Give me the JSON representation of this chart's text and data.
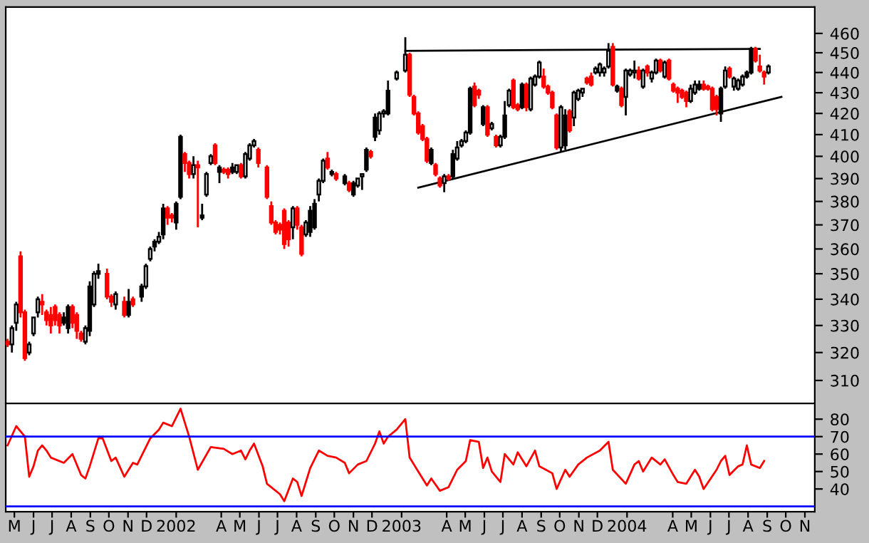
{
  "chart_data": [
    {
      "type": "candlestick",
      "log": true,
      "tick_labels": "y",
      "xlim": [
        "2001-05-01",
        "2004-12-01"
      ],
      "ylim": [
        302,
        474
      ],
      "yticks": [
        310,
        320,
        330,
        340,
        350,
        360,
        370,
        380,
        390,
        400,
        410,
        420,
        430,
        440,
        450,
        460
      ],
      "x": [
        "2001-05-04",
        "2001-05-11",
        "2001-05-18",
        "2001-05-25",
        "2001-06-01",
        "2001-06-08",
        "2001-06-15",
        "2001-06-22",
        "2001-06-29",
        "2001-07-06",
        "2001-07-13",
        "2001-07-20",
        "2001-07-27",
        "2001-08-03",
        "2001-08-10",
        "2001-08-17",
        "2001-08-24",
        "2001-08-31",
        "2001-09-07",
        "2001-09-14",
        "2001-09-21",
        "2001-09-28",
        "2001-10-12",
        "2001-10-19",
        "2001-10-26",
        "2001-11-09",
        "2001-11-16",
        "2001-11-23",
        "2001-12-07",
        "2001-12-14",
        "2001-12-21",
        "2001-12-28",
        "2002-01-04",
        "2002-01-11",
        "2002-01-18",
        "2002-01-25",
        "2002-02-01",
        "2002-02-08",
        "2002-02-15",
        "2002-02-22",
        "2002-03-01",
        "2002-03-08",
        "2002-03-15",
        "2002-03-22",
        "2002-03-29",
        "2002-04-05",
        "2002-04-12",
        "2002-04-19",
        "2002-04-26",
        "2002-05-03",
        "2002-05-10",
        "2002-05-17",
        "2002-05-24",
        "2002-05-31",
        "2002-06-07",
        "2002-06-14",
        "2002-06-28",
        "2002-07-05",
        "2002-07-12",
        "2002-07-19",
        "2002-07-26",
        "2002-08-02",
        "2002-08-09",
        "2002-08-16",
        "2002-08-23",
        "2002-08-30",
        "2002-09-06",
        "2002-09-13",
        "2002-09-20",
        "2002-09-27",
        "2002-10-04",
        "2002-10-11",
        "2002-10-18",
        "2002-11-01",
        "2002-11-08",
        "2002-11-15",
        "2002-11-22",
        "2002-11-29",
        "2002-12-06",
        "2002-12-13",
        "2002-12-20",
        "2002-12-27",
        "2003-01-03",
        "2003-01-10",
        "2003-01-24",
        "2003-02-07",
        "2003-02-14",
        "2003-02-21",
        "2003-02-28",
        "2003-03-07",
        "2003-03-14",
        "2003-03-21",
        "2003-03-28",
        "2003-04-04",
        "2003-04-11",
        "2003-04-18",
        "2003-04-25",
        "2003-05-02",
        "2003-05-09",
        "2003-05-16",
        "2003-05-23",
        "2003-05-30",
        "2003-06-06",
        "2003-06-13",
        "2003-06-20",
        "2003-06-27",
        "2003-07-04",
        "2003-07-11",
        "2003-07-18",
        "2003-07-25",
        "2003-08-01",
        "2003-08-08",
        "2003-08-15",
        "2003-08-22",
        "2003-08-29",
        "2003-09-05",
        "2003-09-12",
        "2003-09-19",
        "2003-09-26",
        "2003-10-03",
        "2003-10-10",
        "2003-10-17",
        "2003-10-24",
        "2003-10-31",
        "2003-11-07",
        "2003-11-14",
        "2003-11-21",
        "2003-11-28",
        "2003-12-05",
        "2003-12-12",
        "2003-12-19",
        "2003-12-26",
        "2004-01-02",
        "2004-01-09",
        "2004-01-16",
        "2004-01-23",
        "2004-01-30",
        "2004-02-06",
        "2004-02-13",
        "2004-02-20",
        "2004-02-27",
        "2004-03-05",
        "2004-03-12",
        "2004-03-19",
        "2004-03-26",
        "2004-04-02",
        "2004-04-09",
        "2004-04-16",
        "2004-04-23",
        "2004-04-30",
        "2004-05-07",
        "2004-05-14",
        "2004-05-21",
        "2004-05-28",
        "2004-06-04",
        "2004-06-11",
        "2004-06-18",
        "2004-06-25",
        "2004-07-02",
        "2004-07-09",
        "2004-07-16",
        "2004-07-23",
        "2004-07-30",
        "2004-08-06",
        "2004-08-13",
        "2004-08-20",
        "2004-08-27",
        "2004-09-03",
        "2004-09-10",
        "2004-09-17"
      ],
      "ohlc": [
        [
          324,
          325,
          322,
          323
        ],
        [
          323,
          330,
          320,
          329
        ],
        [
          331,
          339,
          328,
          338
        ],
        [
          357,
          359,
          333,
          335
        ],
        [
          335,
          336,
          317,
          318
        ],
        [
          320,
          324,
          319,
          323
        ],
        [
          327,
          333,
          326,
          333
        ],
        [
          335,
          341,
          333,
          340
        ],
        [
          339,
          342,
          334,
          338
        ],
        [
          335,
          336,
          330,
          332
        ],
        [
          334,
          337,
          327,
          330
        ],
        [
          337,
          338,
          330,
          332
        ],
        [
          334,
          335,
          327,
          330
        ],
        [
          333,
          335,
          330,
          331
        ],
        [
          337,
          338,
          327,
          329
        ],
        [
          337,
          338,
          329,
          331
        ],
        [
          334,
          335,
          325,
          328
        ],
        [
          327,
          328,
          324,
          325
        ],
        [
          324,
          330,
          323,
          329
        ],
        [
          345,
          347,
          326,
          328
        ],
        [
          338,
          351,
          337,
          350
        ],
        [
          351,
          354,
          348,
          350
        ],
        [
          350,
          352,
          340,
          341
        ],
        [
          341,
          342,
          337,
          339
        ],
        [
          338,
          343,
          336,
          342
        ],
        [
          339,
          341,
          333,
          334
        ],
        [
          339,
          344,
          333,
          334
        ],
        [
          340,
          341,
          337,
          338
        ],
        [
          345,
          346,
          339,
          341
        ],
        [
          345,
          354,
          344,
          353
        ],
        [
          356,
          361,
          355,
          360
        ],
        [
          363,
          364,
          359,
          361
        ],
        [
          363,
          367,
          362,
          365
        ],
        [
          377,
          379,
          364,
          366
        ],
        [
          377,
          378,
          370,
          373
        ],
        [
          374,
          375,
          371,
          373
        ],
        [
          379,
          380,
          368,
          371
        ],
        [
          409,
          410,
          381,
          382
        ],
        [
          401,
          402,
          393,
          397
        ],
        [
          397,
          398,
          390,
          392
        ],
        [
          392,
          400,
          390,
          396
        ],
        [
          396,
          398,
          369,
          395
        ],
        [
          374,
          379,
          372,
          373
        ],
        [
          383,
          393,
          382,
          392
        ],
        [
          397,
          401,
          396,
          400
        ],
        [
          405,
          406,
          396,
          397
        ],
        [
          395,
          396,
          388,
          393
        ],
        [
          394,
          395,
          392,
          393
        ],
        [
          394,
          395,
          390,
          392
        ],
        [
          395,
          397,
          392,
          393
        ],
        [
          393,
          396,
          392,
          396
        ],
        [
          396,
          397,
          390,
          391
        ],
        [
          391,
          402,
          390,
          401
        ],
        [
          399,
          406,
          398,
          405
        ],
        [
          405,
          408,
          404,
          407
        ],
        [
          403,
          404,
          395,
          397
        ],
        [
          395,
          396,
          381,
          382
        ],
        [
          378,
          380,
          370,
          371
        ],
        [
          371,
          372,
          366,
          367
        ],
        [
          370,
          371,
          366,
          368
        ],
        [
          376,
          377,
          360,
          362
        ],
        [
          371,
          372,
          361,
          364
        ],
        [
          369,
          378,
          364,
          377
        ],
        [
          377,
          378,
          368,
          370
        ],
        [
          369,
          370,
          357,
          358
        ],
        [
          366,
          372,
          365,
          371
        ],
        [
          376,
          378,
          365,
          367
        ],
        [
          379,
          381,
          368,
          369
        ],
        [
          383,
          390,
          380,
          389
        ],
        [
          389,
          399,
          388,
          398
        ],
        [
          399,
          402,
          394,
          395
        ],
        [
          393,
          394,
          391,
          392
        ],
        [
          392,
          393,
          389,
          390
        ],
        [
          391,
          392,
          387,
          388
        ],
        [
          388,
          389,
          384,
          385
        ],
        [
          388,
          389,
          382,
          383
        ],
        [
          387,
          390,
          386,
          390
        ],
        [
          391,
          392,
          385,
          392
        ],
        [
          403,
          404,
          393,
          394
        ],
        [
          402,
          403,
          399,
          400
        ],
        [
          418,
          420,
          407,
          409
        ],
        [
          412,
          421,
          410,
          420
        ],
        [
          420,
          422,
          418,
          421
        ],
        [
          431,
          436,
          419,
          420
        ],
        [
          437,
          441,
          436,
          440
        ],
        [
          441,
          458,
          440,
          449
        ],
        [
          449,
          450,
          428,
          429
        ],
        [
          428,
          429,
          419,
          420
        ],
        [
          420,
          421,
          410,
          411
        ],
        [
          414,
          415,
          407,
          408
        ],
        [
          408,
          409,
          397,
          398
        ],
        [
          403,
          404,
          396,
          397
        ],
        [
          396,
          397,
          391,
          392
        ],
        [
          390,
          391,
          386,
          387
        ],
        [
          388,
          392,
          384,
          391
        ],
        [
          391,
          392,
          389,
          390
        ],
        [
          401,
          403,
          390,
          391
        ],
        [
          399,
          407,
          398,
          404
        ],
        [
          405,
          408,
          404,
          407
        ],
        [
          407,
          412,
          406,
          411
        ],
        [
          432,
          433,
          410,
          411
        ],
        [
          433,
          435,
          423,
          424
        ],
        [
          431,
          432,
          427,
          429
        ],
        [
          423,
          424,
          414,
          415
        ],
        [
          423,
          424,
          409,
          410
        ],
        [
          413,
          416,
          412,
          415
        ],
        [
          409,
          410,
          404,
          405
        ],
        [
          405,
          410,
          404,
          409
        ],
        [
          419,
          426,
          408,
          409
        ],
        [
          424,
          432,
          423,
          431
        ],
        [
          436,
          437,
          422,
          423
        ],
        [
          424,
          425,
          421,
          422
        ],
        [
          434,
          435,
          422,
          423
        ],
        [
          434,
          435,
          421,
          423
        ],
        [
          422,
          438,
          421,
          437
        ],
        [
          434,
          439,
          433,
          438
        ],
        [
          438,
          446,
          437,
          445
        ],
        [
          438,
          442,
          432,
          433
        ],
        [
          433,
          434,
          429,
          430
        ],
        [
          430,
          431,
          422,
          423
        ],
        [
          419,
          420,
          403,
          404
        ],
        [
          404,
          424,
          402,
          423
        ],
        [
          419,
          422,
          403,
          405
        ],
        [
          421,
          422,
          411,
          412
        ],
        [
          418,
          431,
          414,
          430
        ],
        [
          427,
          432,
          426,
          431
        ],
        [
          430,
          432,
          428,
          432
        ],
        [
          437,
          438,
          434,
          435
        ],
        [
          438,
          440,
          433,
          434
        ],
        [
          440,
          443,
          439,
          442
        ],
        [
          440,
          445,
          438,
          444
        ],
        [
          440,
          443,
          438,
          442
        ],
        [
          443,
          455,
          442,
          451
        ],
        [
          453,
          455,
          433,
          434
        ],
        [
          433,
          434,
          430,
          431
        ],
        [
          432,
          433,
          423,
          424
        ],
        [
          428,
          442,
          419,
          441
        ],
        [
          439,
          442,
          438,
          441
        ],
        [
          440,
          446,
          437,
          441
        ],
        [
          441,
          443,
          436,
          437
        ],
        [
          433,
          442,
          432,
          441
        ],
        [
          443,
          444,
          438,
          440
        ],
        [
          437,
          441,
          435,
          440
        ],
        [
          440,
          447,
          439,
          446
        ],
        [
          446,
          447,
          440,
          441
        ],
        [
          438,
          446,
          437,
          445
        ],
        [
          446,
          447,
          436,
          437
        ],
        [
          434,
          435,
          430,
          431
        ],
        [
          432,
          433,
          425,
          430
        ],
        [
          431,
          432,
          427,
          428
        ],
        [
          430,
          431,
          423,
          426
        ],
        [
          426,
          434,
          425,
          432
        ],
        [
          430,
          436,
          429,
          434
        ],
        [
          434,
          436,
          431,
          432
        ],
        [
          434,
          436,
          431,
          432
        ],
        [
          433,
          434,
          431,
          432
        ],
        [
          432,
          433,
          421,
          422
        ],
        [
          428,
          429,
          419,
          422
        ],
        [
          432,
          433,
          416,
          420
        ],
        [
          433,
          443,
          432,
          441
        ],
        [
          442,
          443,
          437,
          438
        ],
        [
          433,
          438,
          431,
          437
        ],
        [
          432,
          437,
          431,
          436
        ],
        [
          434,
          439,
          433,
          438
        ],
        [
          440,
          441,
          437,
          438
        ],
        [
          452,
          453,
          439,
          440
        ],
        [
          452,
          453,
          445,
          446
        ],
        [
          443,
          449,
          440,
          441
        ],
        [
          440,
          441,
          434,
          438
        ],
        [
          440,
          444,
          439,
          443
        ]
      ],
      "colors": [
        "#ff0000",
        "#ffffff",
        "#ffffff",
        "#ff0000",
        "#ff0000",
        "#ffffff",
        "#ffffff",
        "#ffffff",
        "#ff0000",
        "#ff0000",
        "#ff0000",
        "#ff0000",
        "#ff0000",
        "#000000",
        "#000000",
        "#ff0000",
        "#ff0000",
        "#ff0000",
        "#ffffff",
        "#000000",
        "#ffffff",
        "#000000",
        "#ff0000",
        "#ff0000",
        "#ffffff",
        "#ff0000",
        "#000000",
        "#ff0000",
        "#000000",
        "#ffffff",
        "#ffffff",
        "#000000",
        "#ffffff",
        "#000000",
        "#ff0000",
        "#ff0000",
        "#000000",
        "#000000",
        "#ff0000",
        "#ff0000",
        "#ffffff",
        "#ff0000",
        "#000000",
        "#ffffff",
        "#ffffff",
        "#ff0000",
        "#000000",
        "#ff0000",
        "#ff0000",
        "#000000",
        "#ffffff",
        "#ff0000",
        "#ffffff",
        "#ffffff",
        "#ffffff",
        "#ff0000",
        "#ff0000",
        "#ff0000",
        "#ff0000",
        "#ff0000",
        "#ff0000",
        "#ff0000",
        "#ffffff",
        "#ff0000",
        "#ff0000",
        "#ffffff",
        "#000000",
        "#000000",
        "#ffffff",
        "#ffffff",
        "#ff0000",
        "#000000",
        "#ff0000",
        "#000000",
        "#ff0000",
        "#000000",
        "#ffffff",
        "#ffffff",
        "#000000",
        "#ff0000",
        "#000000",
        "#ffffff",
        "#ffffff",
        "#000000",
        "#ffffff",
        "#ffffff",
        "#ff0000",
        "#ff0000",
        "#ff0000",
        "#ff0000",
        "#ff0000",
        "#000000",
        "#ff0000",
        "#ff0000",
        "#ffffff",
        "#ff0000",
        "#000000",
        "#ffffff",
        "#ffffff",
        "#ffffff",
        "#000000",
        "#ff0000",
        "#ff0000",
        "#000000",
        "#ff0000",
        "#ffffff",
        "#ff0000",
        "#ffffff",
        "#000000",
        "#ffffff",
        "#ff0000",
        "#ff0000",
        "#000000",
        "#ff0000",
        "#ffffff",
        "#ffffff",
        "#ffffff",
        "#ff0000",
        "#ff0000",
        "#ff0000",
        "#ff0000",
        "#ffffff",
        "#000000",
        "#ff0000",
        "#ffffff",
        "#ffffff",
        "#ffffff",
        "#ff0000",
        "#ff0000",
        "#ffffff",
        "#ffffff",
        "#ffffff",
        "#ffffff",
        "#ff0000",
        "#000000",
        "#ff0000",
        "#ffffff",
        "#ffffff",
        "#ffffff",
        "#ff0000",
        "#ffffff",
        "#ff0000",
        "#ffffff",
        "#ffffff",
        "#ff0000",
        "#ffffff",
        "#ff0000",
        "#ff0000",
        "#ff0000",
        "#ff0000",
        "#ff0000",
        "#ffffff",
        "#ffffff",
        "#000000",
        "#ff0000",
        "#ff0000",
        "#ff0000",
        "#ff0000",
        "#000000",
        "#ffffff",
        "#ff0000",
        "#ffffff",
        "#ffffff",
        "#ffffff",
        "#000000",
        "#000000",
        "#ff0000",
        "#ff0000",
        "#ff0000",
        "#ffffff"
      ],
      "series": [
        {
          "type": "line",
          "color": "#000000",
          "x": [
            "2003-02-07",
            "2004-09-03"
          ],
          "values": [
            451,
            452
          ]
        },
        {
          "type": "line",
          "color": "#000000",
          "x": [
            "2003-02-28",
            "2004-10-08"
          ],
          "values": [
            386,
            428
          ]
        }
      ]
    },
    {
      "type": "line",
      "color": "#ff0000",
      "xlim": [
        "2001-05-01",
        "2004-12-01"
      ],
      "ylim": [
        27,
        89
      ],
      "yticks": [
        40,
        50,
        60,
        70,
        80
      ],
      "xticks": [
        {
          "value": "2001-05-15",
          "label": "M"
        },
        {
          "value": "2001-06-15",
          "label": "J"
        },
        {
          "value": "2001-07-15",
          "label": "J"
        },
        {
          "value": "2001-08-15",
          "label": "A"
        },
        {
          "value": "2001-09-15",
          "label": "S"
        },
        {
          "value": "2001-10-15",
          "label": "O"
        },
        {
          "value": "2001-11-15",
          "label": "N"
        },
        {
          "value": "2001-12-15",
          "label": "D"
        },
        {
          "value": "2002-02-01",
          "label": "2002"
        },
        {
          "value": "2002-04-15",
          "label": "A"
        },
        {
          "value": "2002-05-15",
          "label": "M"
        },
        {
          "value": "2002-06-15",
          "label": "J"
        },
        {
          "value": "2002-07-15",
          "label": "J"
        },
        {
          "value": "2002-08-15",
          "label": "A"
        },
        {
          "value": "2002-09-15",
          "label": "S"
        },
        {
          "value": "2002-10-15",
          "label": "O"
        },
        {
          "value": "2002-11-15",
          "label": "N"
        },
        {
          "value": "2002-12-15",
          "label": "D"
        },
        {
          "value": "2003-02-01",
          "label": "2003"
        },
        {
          "value": "2003-04-15",
          "label": "A"
        },
        {
          "value": "2003-05-15",
          "label": "M"
        },
        {
          "value": "2003-06-15",
          "label": "J"
        },
        {
          "value": "2003-07-15",
          "label": "J"
        },
        {
          "value": "2003-08-15",
          "label": "A"
        },
        {
          "value": "2003-09-15",
          "label": "S"
        },
        {
          "value": "2003-10-15",
          "label": "O"
        },
        {
          "value": "2003-11-15",
          "label": "N"
        },
        {
          "value": "2003-12-15",
          "label": "D"
        },
        {
          "value": "2004-02-01",
          "label": "2004"
        },
        {
          "value": "2004-04-15",
          "label": "A"
        },
        {
          "value": "2004-05-15",
          "label": "M"
        },
        {
          "value": "2004-06-15",
          "label": "J"
        },
        {
          "value": "2004-07-15",
          "label": "J"
        },
        {
          "value": "2004-08-15",
          "label": "A"
        },
        {
          "value": "2004-09-15",
          "label": "S"
        },
        {
          "value": "2004-10-15",
          "label": "O"
        },
        {
          "value": "2004-11-15",
          "label": "N"
        }
      ],
      "ref_lines": [
        {
          "axis": "y",
          "value": 70,
          "color": "#0000ff"
        },
        {
          "axis": "y",
          "value": 30,
          "color": "#0000ff"
        }
      ],
      "x": [
        "2001-05-04",
        "2001-05-18",
        "2001-06-01",
        "2001-06-08",
        "2001-06-15",
        "2001-06-22",
        "2001-06-29",
        "2001-07-06",
        "2001-07-13",
        "2001-08-03",
        "2001-08-17",
        "2001-08-31",
        "2001-09-07",
        "2001-09-14",
        "2001-09-28",
        "2001-10-05",
        "2001-10-19",
        "2001-10-26",
        "2001-11-09",
        "2001-11-23",
        "2001-11-30",
        "2001-12-21",
        "2002-01-04",
        "2002-01-11",
        "2002-01-25",
        "2002-02-08",
        "2002-02-15",
        "2002-02-22",
        "2002-03-08",
        "2002-03-29",
        "2002-04-19",
        "2002-05-03",
        "2002-05-17",
        "2002-05-24",
        "2002-05-31",
        "2002-06-07",
        "2002-06-21",
        "2002-06-28",
        "2002-07-19",
        "2002-07-26",
        "2002-08-09",
        "2002-08-16",
        "2002-08-23",
        "2002-09-06",
        "2002-09-20",
        "2002-10-04",
        "2002-10-18",
        "2002-11-01",
        "2002-11-08",
        "2002-11-22",
        "2002-12-06",
        "2002-12-20",
        "2002-12-27",
        "2003-01-03",
        "2003-01-10",
        "2003-01-24",
        "2003-02-07",
        "2003-02-14",
        "2003-02-28",
        "2003-03-14",
        "2003-03-21",
        "2003-04-04",
        "2003-04-18",
        "2003-05-02",
        "2003-05-16",
        "2003-05-23",
        "2003-06-06",
        "2003-06-13",
        "2003-06-20",
        "2003-06-27",
        "2003-07-11",
        "2003-07-18",
        "2003-08-01",
        "2003-08-08",
        "2003-08-22",
        "2003-09-05",
        "2003-09-12",
        "2003-10-03",
        "2003-10-10",
        "2003-10-24",
        "2003-10-31",
        "2003-11-14",
        "2003-11-28",
        "2003-12-19",
        "2004-01-02",
        "2004-01-09",
        "2004-01-30",
        "2004-02-13",
        "2004-02-20",
        "2004-02-27",
        "2004-03-12",
        "2004-03-26",
        "2004-04-02",
        "2004-04-16",
        "2004-04-23",
        "2004-05-07",
        "2004-05-14",
        "2004-05-21",
        "2004-05-28",
        "2004-06-04",
        "2004-06-25",
        "2004-07-02",
        "2004-07-09",
        "2004-07-16",
        "2004-07-30",
        "2004-08-06",
        "2004-08-13",
        "2004-08-20",
        "2004-09-03",
        "2004-09-10"
      ],
      "values": [
        65,
        76,
        70,
        47,
        53,
        62,
        65,
        62,
        58,
        55,
        60,
        48,
        46,
        53,
        69,
        69,
        56,
        58,
        47,
        55,
        54,
        69,
        74,
        78,
        76,
        86,
        78,
        70,
        51,
        64,
        63,
        60,
        62,
        57,
        62,
        66,
        53,
        43,
        37,
        33,
        46,
        44,
        36,
        52,
        62,
        59,
        58,
        55,
        49,
        54,
        56,
        66,
        73,
        66,
        70,
        74,
        80,
        58,
        50,
        42,
        46,
        39,
        41,
        51,
        56,
        68,
        67,
        52,
        58,
        50,
        44,
        60,
        54,
        61,
        53,
        62,
        53,
        49,
        40,
        51,
        47,
        54,
        58,
        62,
        67,
        51,
        43,
        54,
        56,
        50,
        58,
        54,
        57,
        48,
        44,
        43,
        47,
        51,
        47,
        40,
        51,
        56,
        59,
        48,
        53,
        54,
        65,
        54,
        52,
        56
      ]
    }
  ]
}
